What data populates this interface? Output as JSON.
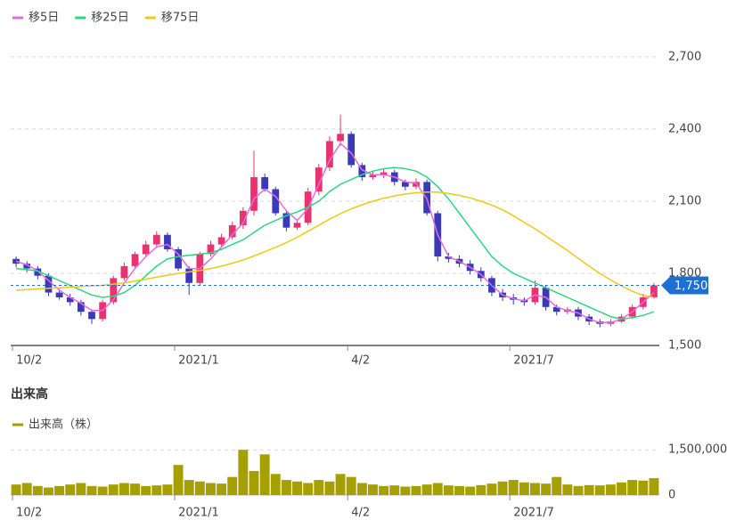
{
  "chart_data": [
    {
      "type": "candlestick",
      "series": [
        {
          "name": "移5日",
          "color": "#e36ce3",
          "values": [
            1850,
            1835,
            1810,
            1770,
            1730,
            1700,
            1675,
            1645,
            1645,
            1690,
            1760,
            1820,
            1870,
            1910,
            1920,
            1880,
            1820,
            1820,
            1860,
            1910,
            1960,
            2010,
            2110,
            2150,
            2120,
            2060,
            2020,
            2070,
            2170,
            2270,
            2340,
            2300,
            2230,
            2210,
            2210,
            2200,
            2180,
            2175,
            2110,
            1960,
            1870,
            1850,
            1825,
            1795,
            1750,
            1710,
            1695,
            1685,
            1710,
            1700,
            1660,
            1645,
            1635,
            1610,
            1595,
            1595,
            1610,
            1640,
            1680,
            1720
          ]
        },
        {
          "name": "移25日",
          "color": "#2ed67f",
          "values": [
            1820,
            1815,
            1810,
            1790,
            1770,
            1750,
            1730,
            1710,
            1700,
            1705,
            1720,
            1750,
            1790,
            1830,
            1860,
            1870,
            1875,
            1880,
            1885,
            1900,
            1920,
            1940,
            1970,
            2000,
            2020,
            2040,
            2055,
            2075,
            2100,
            2140,
            2170,
            2190,
            2210,
            2225,
            2235,
            2240,
            2235,
            2225,
            2200,
            2160,
            2110,
            2050,
            1990,
            1930,
            1870,
            1830,
            1800,
            1780,
            1760,
            1740,
            1720,
            1700,
            1680,
            1660,
            1640,
            1620,
            1610,
            1615,
            1625,
            1640
          ]
        },
        {
          "name": "移75日",
          "color": "#f2c813",
          "values": [
            1730,
            1732,
            1735,
            1738,
            1740,
            1742,
            1745,
            1748,
            1750,
            1755,
            1760,
            1768,
            1776,
            1784,
            1792,
            1800,
            1806,
            1812,
            1820,
            1830,
            1842,
            1856,
            1872,
            1890,
            1908,
            1928,
            1950,
            1975,
            2000,
            2025,
            2048,
            2068,
            2085,
            2100,
            2112,
            2122,
            2130,
            2135,
            2138,
            2138,
            2132,
            2124,
            2114,
            2100,
            2084,
            2064,
            2040,
            2012,
            1985,
            1955,
            1925,
            1895,
            1862,
            1830,
            1800,
            1772,
            1748,
            1725,
            1708,
            1700
          ]
        }
      ],
      "categories": [
        "10/2",
        null,
        null,
        null,
        null,
        null,
        null,
        null,
        null,
        null,
        null,
        null,
        null,
        null,
        null,
        "2021/1",
        null,
        null,
        null,
        null,
        null,
        null,
        null,
        null,
        null,
        null,
        null,
        null,
        null,
        null,
        null,
        "4/2",
        null,
        null,
        null,
        null,
        null,
        null,
        null,
        null,
        null,
        null,
        null,
        null,
        null,
        null,
        "2021/7",
        null,
        null,
        null,
        null,
        null,
        null,
        null,
        null,
        null,
        null,
        null,
        null,
        null
      ],
      "open": [
        1860,
        1840,
        1820,
        1790,
        1720,
        1700,
        1680,
        1640,
        1610,
        1680,
        1780,
        1830,
        1880,
        1920,
        1960,
        1900,
        1820,
        1760,
        1880,
        1920,
        1950,
        2000,
        2060,
        2200,
        2150,
        2050,
        1990,
        2010,
        2140,
        2240,
        2350,
        2380,
        2250,
        2200,
        2210,
        2220,
        2180,
        2160,
        2180,
        2050,
        1870,
        1860,
        1840,
        1810,
        1780,
        1720,
        1700,
        1690,
        1680,
        1740,
        1660,
        1640,
        1650,
        1620,
        1600,
        1590,
        1600,
        1620,
        1660,
        1700
      ],
      "high": [
        1870,
        1850,
        1830,
        1800,
        1735,
        1715,
        1690,
        1650,
        1690,
        1790,
        1845,
        1890,
        1935,
        1975,
        1970,
        1910,
        1830,
        1890,
        1935,
        1965,
        2015,
        2075,
        2310,
        2215,
        2160,
        2060,
        2025,
        2155,
        2255,
        2370,
        2460,
        2390,
        2260,
        2225,
        2235,
        2230,
        2190,
        2195,
        2190,
        2060,
        1885,
        1875,
        1855,
        1825,
        1790,
        1735,
        1715,
        1700,
        1770,
        1750,
        1670,
        1660,
        1660,
        1630,
        1610,
        1610,
        1630,
        1670,
        1715,
        1760
      ],
      "low": [
        1825,
        1805,
        1775,
        1705,
        1690,
        1665,
        1625,
        1590,
        1600,
        1670,
        1770,
        1820,
        1870,
        1905,
        1890,
        1810,
        1710,
        1750,
        1870,
        1905,
        1940,
        1985,
        2040,
        2140,
        2040,
        1975,
        1980,
        2000,
        2125,
        2225,
        2330,
        2240,
        2185,
        2190,
        2195,
        2165,
        2145,
        2150,
        2040,
        1850,
        1845,
        1825,
        1795,
        1765,
        1705,
        1685,
        1670,
        1665,
        1670,
        1645,
        1625,
        1630,
        1605,
        1585,
        1575,
        1580,
        1595,
        1610,
        1650,
        1695
      ],
      "close": [
        1840,
        1820,
        1790,
        1720,
        1700,
        1680,
        1640,
        1610,
        1680,
        1780,
        1830,
        1880,
        1920,
        1960,
        1900,
        1820,
        1760,
        1880,
        1920,
        1950,
        2000,
        2060,
        2200,
        2150,
        2050,
        1990,
        2010,
        2140,
        2240,
        2350,
        2380,
        2250,
        2200,
        2210,
        2220,
        2180,
        2160,
        2180,
        2050,
        1870,
        1860,
        1840,
        1810,
        1780,
        1720,
        1700,
        1690,
        1680,
        1740,
        1660,
        1640,
        1650,
        1620,
        1600,
        1590,
        1600,
        1620,
        1660,
        1700,
        1750
      ],
      "up_color": "#e8336e",
      "down_color": "#3a3ab8",
      "ylim": [
        1500,
        2770
      ],
      "yticks": [
        {
          "value": 1500,
          "label": "1,500"
        },
        {
          "value": 1800,
          "label": "1,800"
        },
        {
          "value": 2100,
          "label": "2,100"
        },
        {
          "value": 2400,
          "label": "2,400"
        },
        {
          "value": 2700,
          "label": "2,700"
        }
      ],
      "grid": true,
      "last_price": {
        "value": 1750,
        "label": "1,750",
        "color": "#1d6fd6"
      }
    },
    {
      "type": "bar",
      "title": "出来高",
      "categories": [
        "10/2",
        null,
        null,
        null,
        null,
        null,
        null,
        null,
        null,
        null,
        null,
        null,
        null,
        null,
        null,
        "2021/1",
        null,
        null,
        null,
        null,
        null,
        null,
        null,
        null,
        null,
        null,
        null,
        null,
        null,
        null,
        null,
        "4/2",
        null,
        null,
        null,
        null,
        null,
        null,
        null,
        null,
        null,
        null,
        null,
        null,
        null,
        null,
        "2021/7",
        null,
        null,
        null,
        null,
        null,
        null,
        null,
        null,
        null,
        null,
        null,
        null,
        null
      ],
      "series": [
        {
          "name": "出来高（株）",
          "color": "#a59f00",
          "values": [
            350000,
            400000,
            300000,
            250000,
            300000,
            350000,
            400000,
            300000,
            280000,
            350000,
            400000,
            380000,
            300000,
            320000,
            350000,
            1000000,
            500000,
            450000,
            400000,
            380000,
            600000,
            1500000,
            800000,
            1350000,
            700000,
            500000,
            450000,
            400000,
            500000,
            450000,
            700000,
            600000,
            400000,
            350000,
            300000,
            320000,
            280000,
            300000,
            350000,
            400000,
            320000,
            300000,
            280000,
            330000,
            380000,
            450000,
            500000,
            420000,
            400000,
            380000,
            600000,
            350000,
            300000,
            330000,
            320000,
            350000,
            420000,
            500000,
            480000,
            560000
          ]
        }
      ],
      "ylim": [
        0,
        1950000
      ],
      "yticks": [
        0,
        {
          "value": 1500000,
          "label": "1,500,000"
        }
      ],
      "grid": true
    }
  ]
}
